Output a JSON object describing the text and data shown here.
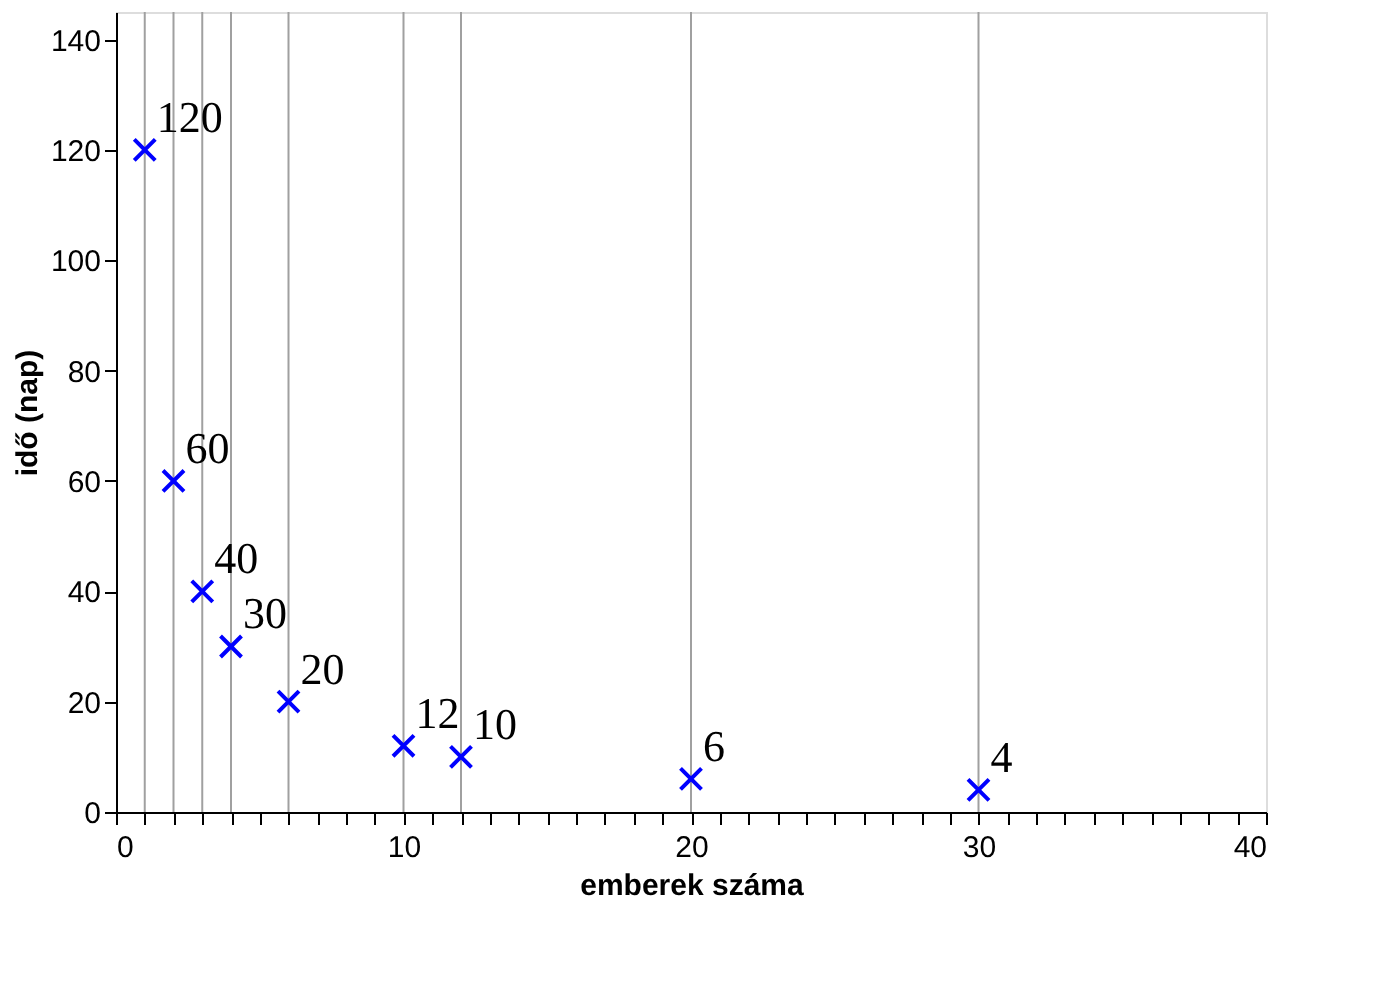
{
  "chart_data": {
    "type": "scatter",
    "xlabel": "emberek száma",
    "ylabel": "idő (nap)",
    "x": [
      1,
      2,
      3,
      4,
      6,
      10,
      12,
      20,
      30
    ],
    "values": [
      120,
      60,
      40,
      30,
      20,
      12,
      10,
      6,
      4
    ],
    "color": "#0000ff",
    "marker": "cross",
    "data_labels": true,
    "grid": false,
    "xlim": [
      0,
      40
    ],
    "ylim": [
      0,
      145
    ],
    "xticks": [
      0,
      {
        "value": 1,
        "label": null
      },
      {
        "value": 2,
        "label": null
      },
      {
        "value": 3,
        "label": null
      },
      {
        "value": 4,
        "label": null
      },
      {
        "value": 5,
        "label": null
      },
      {
        "value": 6,
        "label": null
      },
      {
        "value": 7,
        "label": null
      },
      {
        "value": 8,
        "label": null
      },
      {
        "value": 9,
        "label": null
      },
      10,
      {
        "value": 11,
        "label": null
      },
      {
        "value": 12,
        "label": null
      },
      {
        "value": 13,
        "label": null
      },
      {
        "value": 14,
        "label": null
      },
      {
        "value": 15,
        "label": null
      },
      {
        "value": 16,
        "label": null
      },
      {
        "value": 17,
        "label": null
      },
      {
        "value": 18,
        "label": null
      },
      {
        "value": 19,
        "label": null
      },
      20,
      {
        "value": 21,
        "label": null
      },
      {
        "value": 22,
        "label": null
      },
      {
        "value": 23,
        "label": null
      },
      {
        "value": 24,
        "label": null
      },
      {
        "value": 25,
        "label": null
      },
      {
        "value": 26,
        "label": null
      },
      {
        "value": 27,
        "label": null
      },
      {
        "value": 28,
        "label": null
      },
      {
        "value": 29,
        "label": null
      },
      30,
      {
        "value": 31,
        "label": null
      },
      {
        "value": 32,
        "label": null
      },
      {
        "value": 33,
        "label": null
      },
      {
        "value": 34,
        "label": null
      },
      {
        "value": 35,
        "label": null
      },
      {
        "value": 36,
        "label": null
      },
      {
        "value": 37,
        "label": null
      },
      {
        "value": 38,
        "label": null
      },
      {
        "value": 39,
        "label": null
      },
      40
    ],
    "yticks": [
      0,
      20,
      40,
      60,
      80,
      100,
      120,
      140
    ],
    "ref_lines": [
      {
        "axis": "x",
        "value": 1,
        "color": "#a0a0a0"
      },
      {
        "axis": "x",
        "value": 2,
        "color": "#a0a0a0"
      },
      {
        "axis": "x",
        "value": 3,
        "color": "#a0a0a0"
      },
      {
        "axis": "x",
        "value": 4,
        "color": "#a0a0a0"
      },
      {
        "axis": "x",
        "value": 6,
        "color": "#a0a0a0"
      },
      {
        "axis": "x",
        "value": 10,
        "color": "#a0a0a0"
      },
      {
        "axis": "x",
        "value": 12,
        "color": "#a0a0a0"
      },
      {
        "axis": "x",
        "value": 20,
        "color": "#a0a0a0"
      },
      {
        "axis": "x",
        "value": 30,
        "color": "#a0a0a0"
      }
    ]
  }
}
